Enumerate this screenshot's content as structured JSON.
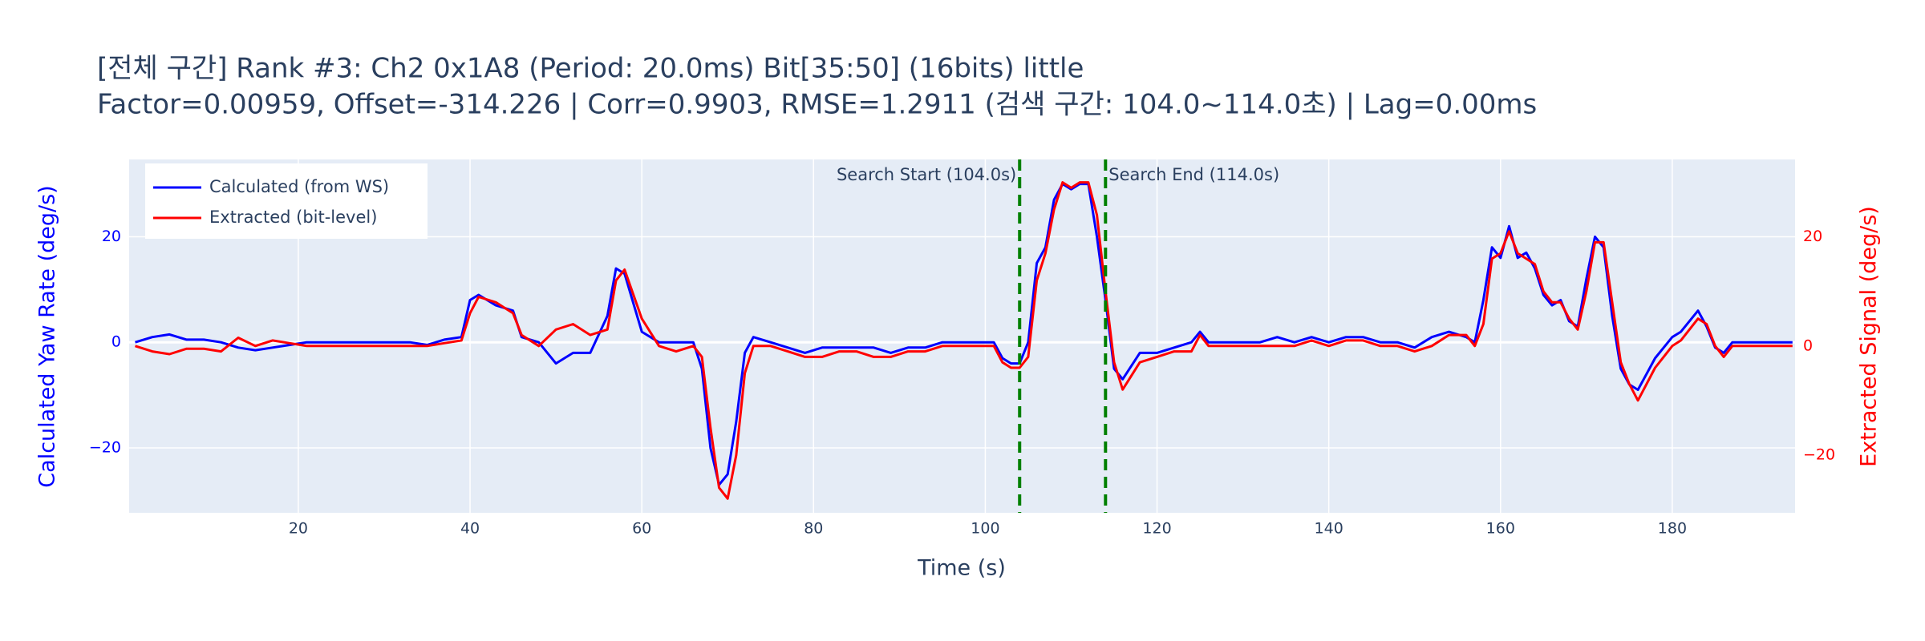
{
  "chart_data": {
    "type": "line",
    "title": "[전체 구간] Rank #3: Ch2 0x1A8 (Period: 20.0ms) Bit[35:50] (16bits) little",
    "subtitle": "Factor=0.00959, Offset=-314.226 | Corr=0.9903, RMSE=1.2911 (검색 구간: 104.0~114.0초) | Lag=0.00ms",
    "x_label": "Time (s)",
    "y_label": "Calculated Yaw Rate (deg/s)",
    "y2_label": "Extracted Signal (deg/s)",
    "xlim": [
      0.3,
      194.3
    ],
    "xticks": [
      20,
      40,
      60,
      80,
      100,
      120,
      140,
      160,
      180
    ],
    "ylim": [
      -32.3,
      34.65
    ],
    "yticks": [
      {
        "value": -20,
        "label": "−20"
      },
      0,
      20
    ],
    "y2lim": [
      -30.6,
      34.2
    ],
    "y2ticks": [
      {
        "value": -20,
        "label": "−20"
      },
      0,
      20
    ],
    "grid": true,
    "legend": "top-left",
    "x": [
      1,
      3,
      5,
      7,
      9,
      11,
      13,
      15,
      17,
      19,
      21,
      23,
      25,
      27,
      29,
      31,
      33,
      35,
      37,
      39,
      40,
      41,
      43,
      45,
      46,
      48,
      50,
      52,
      54,
      56,
      57,
      58,
      60,
      62,
      64,
      66,
      67,
      68,
      69,
      70,
      71,
      72,
      73,
      75,
      77,
      79,
      81,
      83,
      85,
      87,
      89,
      91,
      93,
      95,
      97,
      99,
      101,
      102,
      103,
      104,
      105,
      106,
      107,
      108,
      109,
      110,
      111,
      112,
      113,
      114,
      115,
      116,
      118,
      120,
      122,
      124,
      125,
      126,
      128,
      130,
      132,
      134,
      136,
      138,
      140,
      142,
      144,
      146,
      148,
      150,
      152,
      154,
      156,
      157,
      158,
      159,
      160,
      161,
      162,
      163,
      164,
      165,
      166,
      167,
      168,
      169,
      170,
      171,
      172,
      173,
      174,
      175,
      176,
      177,
      178,
      179,
      180,
      181,
      183,
      184,
      185,
      186,
      187,
      189,
      191,
      194
    ],
    "series": [
      {
        "name": "Calculated (from WS)",
        "color": "#0000ff",
        "axis": "y",
        "values": [
          0,
          1,
          1.5,
          0.5,
          0.5,
          0,
          -1,
          -1.5,
          -1,
          -0.5,
          0,
          0,
          0,
          0,
          0,
          0,
          0,
          -0.5,
          0.5,
          1,
          8,
          9,
          7,
          6,
          1,
          0,
          -4,
          -2,
          -2,
          5,
          14,
          13,
          2,
          0,
          0,
          0,
          -5,
          -20,
          -27,
          -25,
          -15,
          -2,
          1,
          0,
          -1,
          -2,
          -1,
          -1,
          -1,
          -1,
          -2,
          -1,
          -1,
          0,
          0,
          0,
          0,
          -3,
          -4,
          -4,
          0,
          15,
          18,
          27,
          30,
          29,
          30,
          30,
          20,
          8,
          -5,
          -7,
          -2,
          -2,
          -1,
          0,
          2,
          0,
          0,
          0,
          0,
          1,
          0,
          1,
          0,
          1,
          1,
          0,
          0,
          -1,
          1,
          2,
          1,
          0,
          8,
          18,
          16,
          22,
          16,
          17,
          14,
          9,
          7,
          8,
          4,
          3,
          12,
          20,
          18,
          5,
          -5,
          -8,
          -9,
          -6,
          -3,
          -1,
          1,
          2,
          6,
          3,
          -1,
          -2,
          0,
          0,
          0,
          0
        ]
      },
      {
        "name": "Extracted (bit-level)",
        "color": "#ff0000",
        "axis": "y2",
        "values": [
          0,
          -1,
          -1.5,
          -0.5,
          -0.5,
          -1,
          1.5,
          0,
          1,
          0.5,
          0,
          0,
          0,
          0,
          0,
          0,
          0,
          0,
          0.5,
          1,
          6,
          9,
          8,
          6,
          2,
          0,
          3,
          4,
          2,
          3,
          12,
          14,
          5,
          0,
          -1,
          0,
          -2,
          -15,
          -26,
          -28,
          -20,
          -5,
          0,
          0,
          -1,
          -2,
          -2,
          -1,
          -1,
          -2,
          -2,
          -1,
          -1,
          0,
          0,
          0,
          0,
          -3,
          -4,
          -4,
          -2,
          12,
          17,
          25,
          30,
          29,
          30,
          30,
          24,
          10,
          -3,
          -8,
          -3,
          -2,
          -1,
          -1,
          2,
          0,
          0,
          0,
          0,
          0,
          0,
          1,
          0,
          1,
          1,
          0,
          0,
          -1,
          0,
          2,
          2,
          0,
          4,
          16,
          17,
          21,
          17,
          16,
          15,
          10,
          8,
          8,
          5,
          3,
          10,
          19,
          19,
          8,
          -3,
          -7,
          -10,
          -7,
          -4,
          -2,
          0,
          1,
          5,
          4,
          0,
          -2,
          0,
          0,
          0,
          0
        ]
      }
    ],
    "annotations": [
      {
        "x": 104,
        "text": "Search Start (104.0s)"
      },
      {
        "x": 114,
        "text": "Search End (114.0s)"
      }
    ],
    "annotation_color": "#008000"
  }
}
